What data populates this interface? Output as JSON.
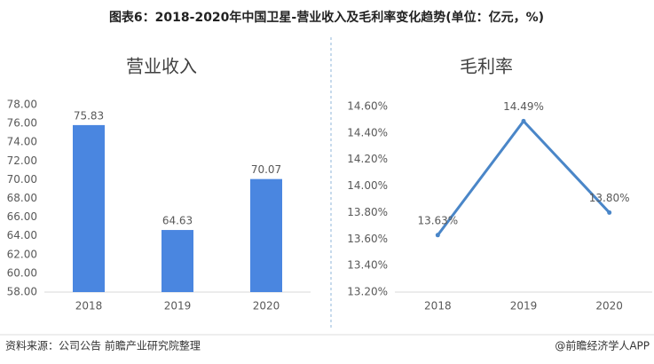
{
  "title": "图表6：2018-2020年中国卫星-营业收入及毛利率变化趋势(单位：亿元，%)",
  "source": "资料来源：公司公告 前瞻产业研究院整理",
  "credit": "@前瞻经济学人APP",
  "chart_data": [
    {
      "type": "bar",
      "title": "营业收入",
      "categories": [
        "2018",
        "2019",
        "2020"
      ],
      "values": [
        75.83,
        64.63,
        70.07
      ],
      "color": "#4a86e0",
      "ylim": [
        58,
        78
      ],
      "yticks": [
        {
          "value": 58,
          "label": "58.00"
        },
        {
          "value": 60,
          "label": "60.00"
        },
        {
          "value": 62,
          "label": "62.00"
        },
        {
          "value": 64,
          "label": "64.00"
        },
        {
          "value": 66,
          "label": "66.00"
        },
        {
          "value": 68,
          "label": "68.00"
        },
        {
          "value": 70,
          "label": "70.00"
        },
        {
          "value": 72,
          "label": "72.00"
        },
        {
          "value": 74,
          "label": "74.00"
        },
        {
          "value": 76,
          "label": "76.00"
        },
        {
          "value": 78,
          "label": "78.00"
        }
      ]
    },
    {
      "type": "line",
      "title": "毛利率",
      "categories": [
        "2018",
        "2019",
        "2020"
      ],
      "values": [
        13.63,
        14.49,
        13.8
      ],
      "value_labels": [
        "13.63%",
        "14.49%",
        "13.80%"
      ],
      "color": "#4a86c8",
      "ylim": [
        13.2,
        14.6
      ],
      "yticks": [
        {
          "value": 13.2,
          "label": "13.20%"
        },
        {
          "value": 13.4,
          "label": "13.40%"
        },
        {
          "value": 13.6,
          "label": "13.60%"
        },
        {
          "value": 13.8,
          "label": "13.80%"
        },
        {
          "value": 14.0,
          "label": "14.00%"
        },
        {
          "value": 14.2,
          "label": "14.20%"
        },
        {
          "value": 14.4,
          "label": "14.40%"
        },
        {
          "value": 14.6,
          "label": "14.60%"
        }
      ]
    }
  ]
}
